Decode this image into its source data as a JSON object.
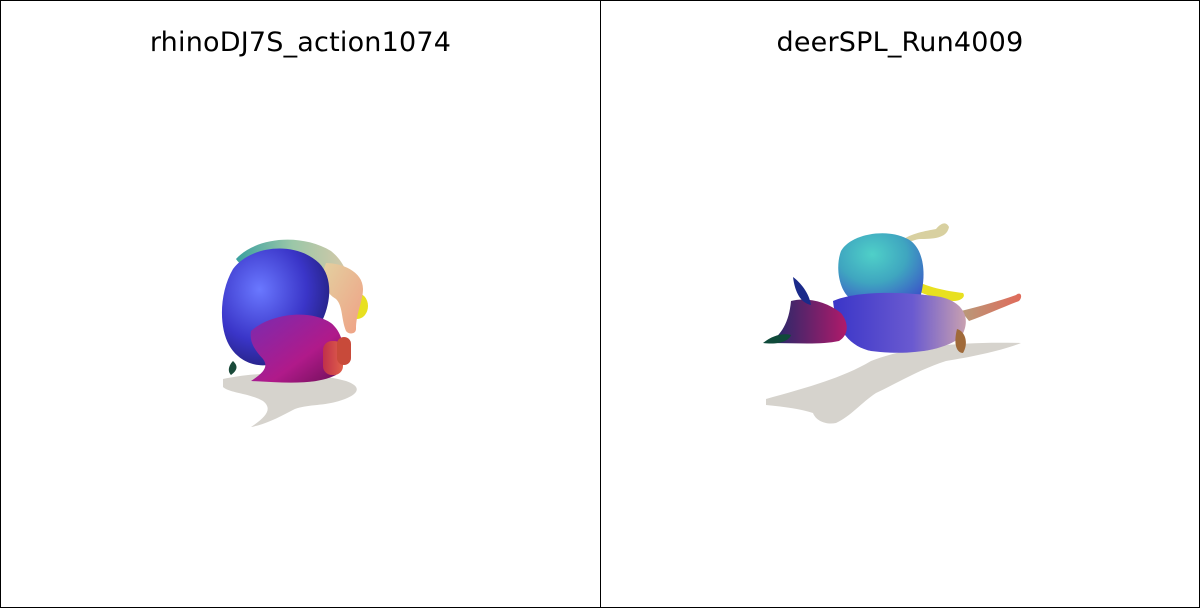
{
  "panels": [
    {
      "title": "rhinoDJ7S_action1074",
      "mesh_icon": "rhino-mesh-render"
    },
    {
      "title": "deerSPL_Run4009",
      "mesh_icon": "deer-mesh-render"
    }
  ],
  "colors": {
    "background": "#ffffff",
    "border": "#000000",
    "shadow": "#d6d3cd"
  }
}
